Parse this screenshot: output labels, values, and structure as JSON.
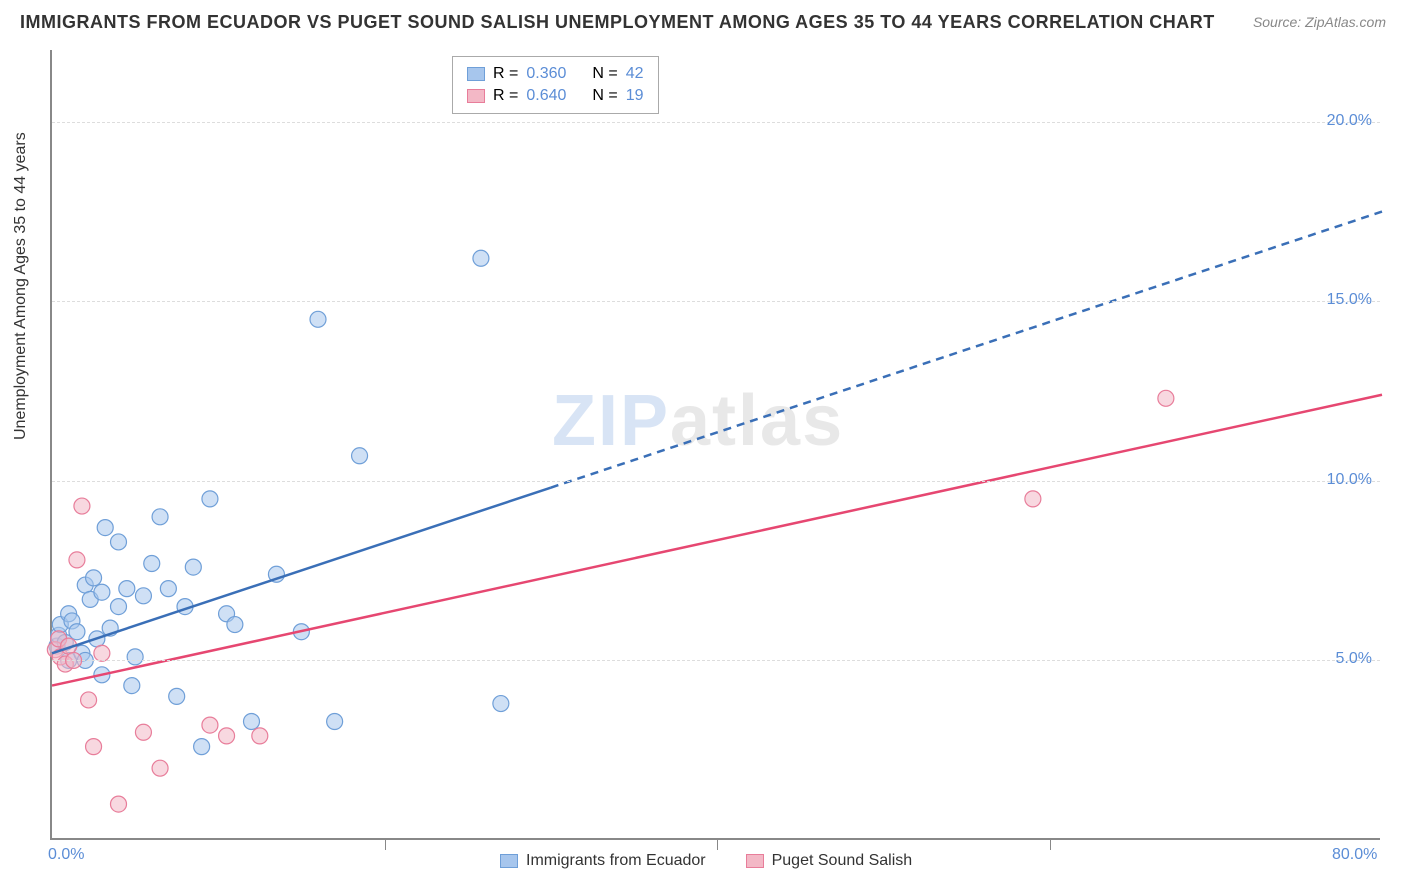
{
  "title": "IMMIGRANTS FROM ECUADOR VS PUGET SOUND SALISH UNEMPLOYMENT AMONG AGES 35 TO 44 YEARS CORRELATION CHART",
  "source": "Source: ZipAtlas.com",
  "ylabel": "Unemployment Among Ages 35 to 44 years",
  "watermark": {
    "zip": "ZIP",
    "atlas": "atlas"
  },
  "chart": {
    "type": "scatter",
    "xlim": [
      0,
      80
    ],
    "ylim": [
      0,
      22
    ],
    "x_ticks": [
      0,
      20,
      40,
      60,
      80
    ],
    "x_tick_labels": [
      "0.0%",
      "",
      "",
      "",
      "80.0%"
    ],
    "y_ticks": [
      5,
      10,
      15,
      20
    ],
    "y_tick_labels": [
      "5.0%",
      "10.0%",
      "15.0%",
      "20.0%"
    ],
    "vgrid_ticks": [
      20,
      40,
      60
    ],
    "background_color": "#ffffff",
    "grid_color": "#dddddd",
    "axis_color": "#888888",
    "marker_radius": 8,
    "marker_opacity": 0.55,
    "series": [
      {
        "id": "ecuador",
        "label": "Immigrants from Ecuador",
        "color_fill": "#a7c6ed",
        "color_stroke": "#6f9fd8",
        "R": "0.360",
        "N": "42",
        "trend": {
          "line_color": "#3a6fb7",
          "line_width": 2.5,
          "solid_until_x": 30,
          "x1": 0,
          "y1": 5.2,
          "x2": 80,
          "y2": 17.5
        },
        "points": [
          [
            0.3,
            5.4
          ],
          [
            0.4,
            5.7
          ],
          [
            0.5,
            6.0
          ],
          [
            0.8,
            5.5
          ],
          [
            1.0,
            6.3
          ],
          [
            1.0,
            5.0
          ],
          [
            1.2,
            6.1
          ],
          [
            1.5,
            5.8
          ],
          [
            1.8,
            5.2
          ],
          [
            2.0,
            7.1
          ],
          [
            2.0,
            5.0
          ],
          [
            2.3,
            6.7
          ],
          [
            2.5,
            7.3
          ],
          [
            2.7,
            5.6
          ],
          [
            3.0,
            6.9
          ],
          [
            3.0,
            4.6
          ],
          [
            3.2,
            8.7
          ],
          [
            3.5,
            5.9
          ],
          [
            4.0,
            6.5
          ],
          [
            4.0,
            8.3
          ],
          [
            4.5,
            7.0
          ],
          [
            4.8,
            4.3
          ],
          [
            5.0,
            5.1
          ],
          [
            5.5,
            6.8
          ],
          [
            6.0,
            7.7
          ],
          [
            6.5,
            9.0
          ],
          [
            7.0,
            7.0
          ],
          [
            7.5,
            4.0
          ],
          [
            8.0,
            6.5
          ],
          [
            8.5,
            7.6
          ],
          [
            9.0,
            2.6
          ],
          [
            9.5,
            9.5
          ],
          [
            10.5,
            6.3
          ],
          [
            11.0,
            6.0
          ],
          [
            12.0,
            3.3
          ],
          [
            13.5,
            7.4
          ],
          [
            15.0,
            5.8
          ],
          [
            16.0,
            14.5
          ],
          [
            17.0,
            3.3
          ],
          [
            18.5,
            10.7
          ],
          [
            25.8,
            16.2
          ],
          [
            27.0,
            3.8
          ]
        ]
      },
      {
        "id": "salish",
        "label": "Puget Sound Salish",
        "color_fill": "#f3b8c6",
        "color_stroke": "#e87d9a",
        "R": "0.640",
        "N": "19",
        "trend": {
          "line_color": "#e64771",
          "line_width": 2.5,
          "solid_until_x": 80,
          "x1": 0,
          "y1": 4.3,
          "x2": 80,
          "y2": 12.4
        },
        "points": [
          [
            0.2,
            5.3
          ],
          [
            0.4,
            5.6
          ],
          [
            0.5,
            5.1
          ],
          [
            0.8,
            4.9
          ],
          [
            1.0,
            5.4
          ],
          [
            1.3,
            5.0
          ],
          [
            1.5,
            7.8
          ],
          [
            1.8,
            9.3
          ],
          [
            2.2,
            3.9
          ],
          [
            2.5,
            2.6
          ],
          [
            3.0,
            5.2
          ],
          [
            4.0,
            1.0
          ],
          [
            5.5,
            3.0
          ],
          [
            6.5,
            2.0
          ],
          [
            9.5,
            3.2
          ],
          [
            10.5,
            2.9
          ],
          [
            12.5,
            2.9
          ],
          [
            59.0,
            9.5
          ],
          [
            67.0,
            12.3
          ]
        ]
      }
    ]
  },
  "legend_top": {
    "r_label": "R =",
    "n_label": "N ="
  }
}
